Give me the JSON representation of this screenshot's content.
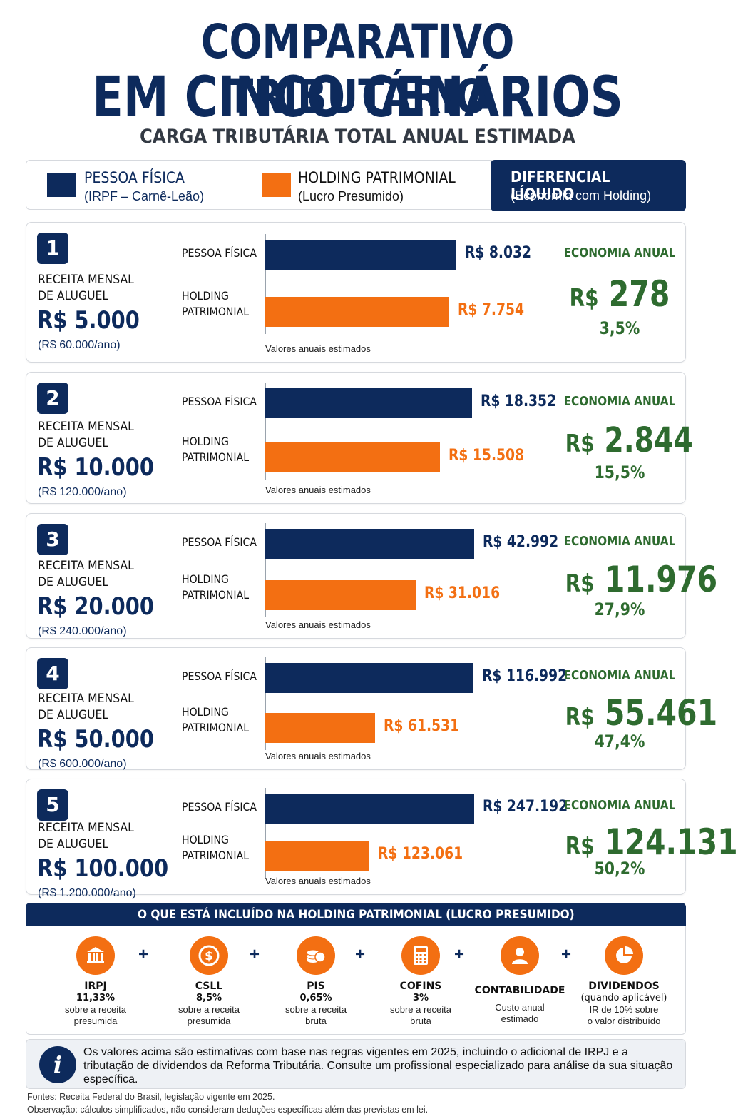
{
  "header": {
    "title_line1": "COMPARATIVO TRIBUTÁRIO",
    "title_line2": "EM CINCO CENÁRIOS",
    "subtitle": "CARGA TRIBUTÁRIA TOTAL ANUAL ESTIMADA"
  },
  "legend": {
    "pf_title": "PESSOA FÍSICA",
    "pf_sub": "(IRPF – Carnê-Leão)",
    "hp_title": "HOLDING PATRIMONIAL",
    "hp_sub": "(Lucro Presumido)",
    "diff_title": "DIFERENCIAL LÍQUIDO",
    "diff_sub": "(Economia com Holding)"
  },
  "colors": {
    "pf": "#0d2a5c",
    "hp": "#f36f12",
    "economy": "#2e6b2f"
  },
  "labels": {
    "receita_line1": "RECEITA MENSAL",
    "receita_line2": "DE ALUGUEL",
    "bar_pf": "PESSOA FÍSICA",
    "bar_hp_line1": "HOLDING",
    "bar_hp_line2": "PATRIMONIAL",
    "chart_note": "Valores anuais estimados",
    "economia": "ECONOMIA ANUAL",
    "currency": "R$"
  },
  "chart_data": {
    "type": "bar",
    "orientation": "horizontal",
    "series_names": [
      "PESSOA FÍSICA",
      "HOLDING PATRIMONIAL"
    ],
    "scenarios": [
      {
        "num": "1",
        "receita": "R$ 5.000",
        "receita_ano": "(R$ 60.000/ano)",
        "pf": 8032,
        "hp": 7754,
        "pf_label": "R$ 8.032",
        "hp_label": "R$ 7.754",
        "economia": "278",
        "pct": "3,5%",
        "max": 9000
      },
      {
        "num": "2",
        "receita": "R$ 10.000",
        "receita_ano": "(R$ 120.000/ano)",
        "pf": 18352,
        "hp": 15508,
        "pf_label": "R$ 18.352",
        "hp_label": "R$ 15.508",
        "economia": "2.844",
        "pct": "15,5%",
        "max": 19000
      },
      {
        "num": "3",
        "receita": "R$ 20.000",
        "receita_ano": "(R$ 240.000/ano)",
        "pf": 42992,
        "hp": 31016,
        "pf_label": "R$ 42.992",
        "hp_label": "R$ 31.016",
        "economia": "11.976",
        "pct": "27,9%",
        "max": 44000
      },
      {
        "num": "4",
        "receita": "R$ 50.000",
        "receita_ano": "(R$ 600.000/ano)",
        "pf": 116992,
        "hp": 61531,
        "pf_label": "R$ 116.992",
        "hp_label": "R$ 61.531",
        "economia": "55.461",
        "pct": "47,4%",
        "max": 120000
      },
      {
        "num": "5",
        "receita": "R$ 100.000",
        "receita_ano": "(R$ 1.200.000/ano)",
        "pf": 247192,
        "hp": 123061,
        "pf_label": "R$ 247.192",
        "hp_label": "R$ 123.061",
        "economia": "124.131",
        "pct": "50,2%",
        "max": 253000
      }
    ]
  },
  "included": {
    "header": "O QUE ESTÁ INCLUÍDO NA HOLDING PATRIMONIAL (LUCRO PRESUMIDO)",
    "items": [
      {
        "icon": "bank-icon",
        "name": "IRPJ",
        "rate": "11,33%",
        "desc1": "sobre a receita",
        "desc2": "presumida"
      },
      {
        "icon": "dollar-coin-icon",
        "name": "CSLL",
        "rate": "8,5%",
        "desc1": "sobre a receita",
        "desc2": "presumida"
      },
      {
        "icon": "coins-stack-icon",
        "name": "PIS",
        "rate": "0,65%",
        "desc1": "sobre a receita",
        "desc2": "bruta"
      },
      {
        "icon": "calculator-icon",
        "name": "COFINS",
        "rate": "3%",
        "desc1": "sobre a receita",
        "desc2": "bruta"
      },
      {
        "icon": "person-icon",
        "name": "CONTABILIDADE",
        "rate": "",
        "desc1": "Custo anual",
        "desc2": "estimado"
      },
      {
        "icon": "pie-chart-icon",
        "name": "DIVIDENDOS",
        "rate": "(quando aplicável)",
        "desc1": "IR de 10% sobre",
        "desc2": "o valor distribuído"
      }
    ],
    "plus": "+"
  },
  "info": {
    "icon_glyph": "i",
    "text": "Os valores acima são estimativas com base nas regras vigentes em 2025, incluindo o adicional de IRPJ e a tributação de dividendos da Reforma Tributária. Consulte um profissional especializado para análise da sua situação específica."
  },
  "footer": {
    "fontes": "Fontes: Receita Federal do Brasil, legislação vigente em 2025.",
    "observacao": "Observação: cálculos simplificados, não consideram deduções específicas além das previstas em lei."
  }
}
